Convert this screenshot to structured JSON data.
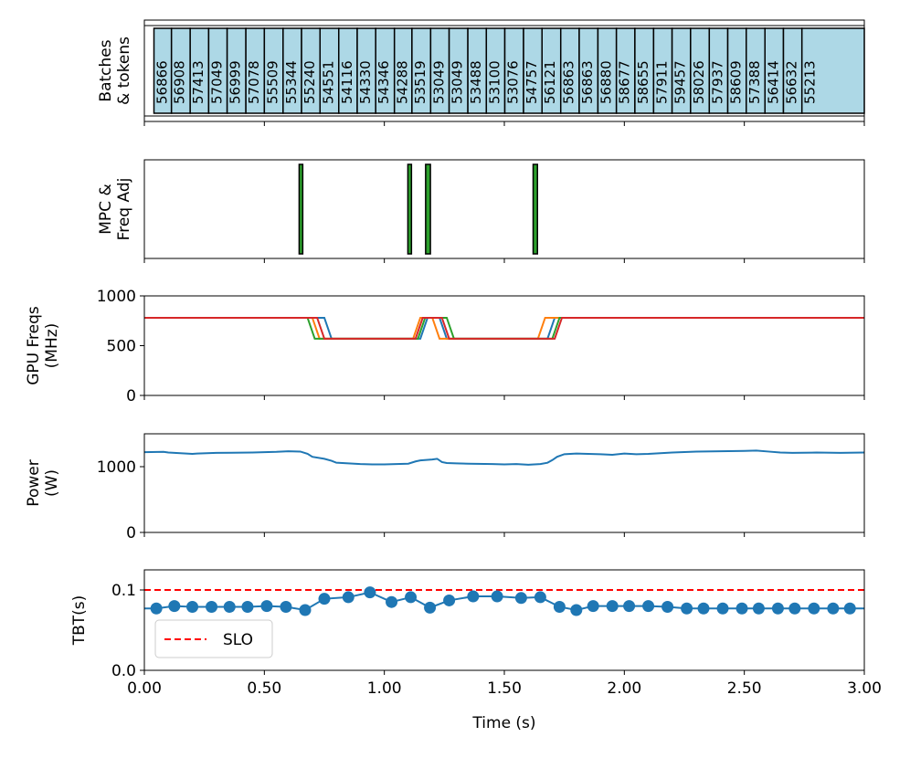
{
  "chart_data": [
    {
      "type": "bar",
      "ylabel_lines": [
        "Batches",
        "& tokens"
      ],
      "xlim": [
        0,
        3
      ],
      "batches": {
        "tokens": [
          "56866",
          "56908",
          "57413",
          "57049",
          "56999",
          "57078",
          "55509",
          "55344",
          "55240",
          "54551",
          "54116",
          "54330",
          "54346",
          "54288",
          "53519",
          "53049",
          "53049",
          "53488",
          "53100",
          "53076",
          "54757",
          "56121",
          "56863",
          "56863",
          "56880",
          "58677",
          "58655",
          "57911",
          "59457",
          "58026",
          "57937",
          "58609",
          "57388",
          "56414",
          "56632",
          "55213"
        ],
        "start_times": [
          0.04,
          0.113,
          0.191,
          0.268,
          0.345,
          0.423,
          0.5,
          0.578,
          0.655,
          0.732,
          0.81,
          0.887,
          0.964,
          1.042,
          1.115,
          1.193,
          1.27,
          1.348,
          1.425,
          1.502,
          1.58,
          1.657,
          1.735,
          1.812,
          1.89,
          1.967,
          2.044,
          2.122,
          2.199,
          2.276,
          2.354,
          2.431,
          2.508,
          2.586,
          2.663,
          2.74
        ],
        "end_time": 3.0,
        "fill_color": "#add8e6"
      }
    },
    {
      "type": "bar",
      "ylabel_lines": [
        "MPC &",
        "Freq Adj"
      ],
      "xlim": [
        0,
        3
      ],
      "events": [
        {
          "start": 0.645,
          "end": 0.66
        },
        {
          "start": 1.098,
          "end": 1.113
        },
        {
          "start": 1.172,
          "end": 1.192
        },
        {
          "start": 1.62,
          "end": 1.638
        }
      ],
      "fill_color": "#2ca02c"
    },
    {
      "type": "line",
      "ylabel_lines": [
        "GPU Freqs",
        "(MHz)"
      ],
      "xlim": [
        0,
        3
      ],
      "ylim": [
        0,
        1000
      ],
      "yticks": [
        0,
        500,
        1000
      ],
      "series": [
        {
          "color": "#1f77b4",
          "x": [
            0,
            0.75,
            0.78,
            1.15,
            1.18,
            1.23,
            1.26,
            1.68,
            1.71,
            3.0
          ],
          "y": [
            780,
            780,
            570,
            570,
            780,
            780,
            570,
            570,
            780,
            780
          ]
        },
        {
          "color": "#ff7f0e",
          "x": [
            0,
            0.7,
            0.73,
            1.12,
            1.15,
            1.2,
            1.23,
            1.64,
            1.67,
            3.0
          ],
          "y": [
            780,
            780,
            570,
            570,
            780,
            780,
            570,
            570,
            780,
            780
          ]
        },
        {
          "color": "#2ca02c",
          "x": [
            0,
            0.68,
            0.71,
            1.14,
            1.17,
            1.26,
            1.29,
            1.7,
            1.73,
            3.0
          ],
          "y": [
            780,
            780,
            570,
            570,
            780,
            780,
            570,
            570,
            780,
            780
          ]
        },
        {
          "color": "#d62728",
          "x": [
            0,
            0.72,
            0.75,
            1.13,
            1.16,
            1.24,
            1.27,
            1.71,
            1.74,
            3.0
          ],
          "y": [
            780,
            780,
            570,
            570,
            780,
            780,
            570,
            570,
            780,
            780
          ]
        }
      ]
    },
    {
      "type": "line",
      "ylabel_lines": [
        "Power",
        "(W)"
      ],
      "xlim": [
        0,
        3
      ],
      "ylim": [
        0,
        1500
      ],
      "yticks": [
        0,
        1000
      ],
      "series": [
        {
          "color": "#1f77b4",
          "x": [
            0,
            0.08,
            0.1,
            0.2,
            0.22,
            0.3,
            0.45,
            0.5,
            0.55,
            0.6,
            0.65,
            0.68,
            0.7,
            0.75,
            0.78,
            0.8,
            0.85,
            0.9,
            0.95,
            1.0,
            1.05,
            1.1,
            1.13,
            1.15,
            1.2,
            1.22,
            1.24,
            1.26,
            1.3,
            1.35,
            1.45,
            1.5,
            1.55,
            1.6,
            1.65,
            1.68,
            1.7,
            1.72,
            1.75,
            1.8,
            1.85,
            1.9,
            1.95,
            2.0,
            2.05,
            2.1,
            2.2,
            2.3,
            2.4,
            2.5,
            2.55,
            2.6,
            2.65,
            2.7,
            2.8,
            2.9,
            3.0
          ],
          "y": [
            1220,
            1225,
            1215,
            1195,
            1200,
            1210,
            1215,
            1220,
            1225,
            1235,
            1230,
            1195,
            1150,
            1120,
            1090,
            1060,
            1050,
            1040,
            1035,
            1035,
            1040,
            1045,
            1080,
            1095,
            1110,
            1120,
            1070,
            1055,
            1050,
            1045,
            1040,
            1035,
            1040,
            1030,
            1040,
            1060,
            1100,
            1150,
            1190,
            1200,
            1195,
            1190,
            1180,
            1200,
            1190,
            1195,
            1215,
            1230,
            1235,
            1240,
            1245,
            1230,
            1215,
            1210,
            1215,
            1210,
            1215
          ]
        }
      ]
    },
    {
      "type": "line",
      "ylabel": "TBT(s)",
      "xlabel": "Time (s)",
      "xlim": [
        0,
        3
      ],
      "ylim": [
        0,
        0.125
      ],
      "yticks": [
        0.0,
        0.1
      ],
      "ytick_labels": [
        "0.0",
        "0.1"
      ],
      "xticks": [
        0,
        0.5,
        1.0,
        1.5,
        2.0,
        2.5,
        3.0
      ],
      "xtick_labels": [
        "0.00",
        "0.50",
        "1.00",
        "1.50",
        "2.00",
        "2.50",
        "3.00"
      ],
      "slo": {
        "value": 0.1,
        "label": "SLO",
        "color": "#ff0000"
      },
      "legend": "lower-left",
      "series": [
        {
          "color": "#1f77b4",
          "x": [
            0,
            0.05,
            0.125,
            0.2,
            0.28,
            0.355,
            0.43,
            0.51,
            0.59,
            0.67,
            0.75,
            0.85,
            0.94,
            1.03,
            1.11,
            1.19,
            1.27,
            1.37,
            1.47,
            1.57,
            1.65,
            1.73,
            1.8,
            1.87,
            1.95,
            2.02,
            2.1,
            2.18,
            2.26,
            2.33,
            2.41,
            2.49,
            2.56,
            2.64,
            2.71,
            2.79,
            2.87,
            2.94,
            3.0
          ],
          "y": [
            0.077,
            0.077,
            0.08,
            0.079,
            0.079,
            0.079,
            0.079,
            0.08,
            0.079,
            0.075,
            0.089,
            0.091,
            0.097,
            0.085,
            0.091,
            0.078,
            0.087,
            0.092,
            0.092,
            0.09,
            0.091,
            0.079,
            0.075,
            0.08,
            0.08,
            0.08,
            0.08,
            0.079,
            0.077,
            0.077,
            0.077,
            0.077,
            0.077,
            0.077,
            0.077,
            0.077,
            0.077,
            0.077,
            0.077
          ],
          "markers_from_index": 1,
          "markers_until_index": 37
        }
      ]
    }
  ]
}
